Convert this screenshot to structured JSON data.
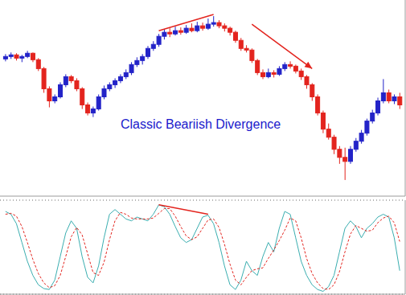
{
  "chart_data": [
    {
      "type": "candlestick",
      "annotation": "Classic Beariish Divergence",
      "x": [
        0,
        1,
        2,
        3,
        4,
        5,
        6,
        7,
        8,
        9,
        10,
        11,
        12,
        13,
        14,
        15,
        16,
        17,
        18,
        19,
        20,
        21,
        22,
        23,
        24,
        25,
        26,
        27,
        28,
        29,
        30,
        31,
        32,
        33,
        34,
        35,
        36,
        37,
        38,
        39,
        40,
        41,
        42,
        43,
        44,
        45,
        46,
        47,
        48,
        49,
        50,
        51,
        52,
        53,
        54,
        55,
        56,
        57,
        58,
        59,
        60,
        61,
        62,
        63,
        64,
        65,
        66,
        67,
        68,
        69,
        70,
        71,
        72
      ],
      "open": [
        170,
        173,
        175,
        171,
        173,
        177,
        169,
        158,
        133,
        118,
        123,
        138,
        148,
        143,
        133,
        113,
        103,
        108,
        123,
        133,
        138,
        143,
        148,
        153,
        163,
        168,
        173,
        183,
        188,
        198,
        203,
        201,
        205,
        203,
        208,
        205,
        211,
        208,
        213,
        215,
        211,
        208,
        203,
        193,
        183,
        181,
        168,
        153,
        148,
        153,
        151,
        158,
        163,
        161,
        155,
        148,
        138,
        123,
        103,
        83,
        73,
        58,
        48,
        43,
        58,
        68,
        78,
        93,
        103,
        118,
        128,
        118,
        123
      ],
      "high": [
        176,
        178,
        177,
        175,
        180,
        178,
        171,
        160,
        136,
        126,
        141,
        151,
        150,
        146,
        135,
        116,
        111,
        126,
        137,
        141,
        146,
        151,
        157,
        166,
        172,
        176,
        186,
        192,
        201,
        207,
        208,
        210,
        209,
        212,
        214,
        216,
        215,
        220,
        223,
        218,
        214,
        210,
        205,
        196,
        187,
        183,
        170,
        157,
        158,
        156,
        161,
        166,
        167,
        163,
        158,
        150,
        140,
        126,
        106,
        90,
        76,
        62,
        60,
        62,
        72,
        82,
        96,
        107,
        122,
        145,
        132,
        126,
        128
      ],
      "low": [
        167,
        170,
        168,
        166,
        171,
        166,
        155,
        128,
        110,
        115,
        121,
        135,
        140,
        130,
        108,
        100,
        98,
        106,
        120,
        130,
        134,
        140,
        145,
        150,
        160,
        163,
        170,
        180,
        185,
        194,
        197,
        199,
        200,
        201,
        203,
        203,
        205,
        206,
        210,
        208,
        204,
        199,
        190,
        180,
        178,
        165,
        150,
        145,
        146,
        147,
        149,
        155,
        158,
        152,
        144,
        133,
        118,
        100,
        78,
        70,
        52,
        40,
        20,
        40,
        55,
        65,
        75,
        90,
        100,
        115,
        115,
        114,
        108
      ],
      "close": [
        173,
        175,
        171,
        173,
        177,
        169,
        158,
        133,
        118,
        123,
        138,
        148,
        143,
        133,
        113,
        103,
        108,
        123,
        133,
        138,
        143,
        148,
        153,
        163,
        168,
        173,
        183,
        188,
        198,
        203,
        201,
        205,
        203,
        208,
        205,
        211,
        208,
        213,
        215,
        211,
        208,
        203,
        193,
        183,
        181,
        168,
        153,
        148,
        153,
        151,
        158,
        163,
        161,
        155,
        148,
        138,
        123,
        103,
        83,
        73,
        58,
        48,
        43,
        58,
        68,
        78,
        93,
        103,
        118,
        128,
        118,
        123,
        113
      ],
      "colors": {
        "up": "#2323c8",
        "down": "#e3241e"
      },
      "xlim": [
        -1,
        73
      ],
      "ylim": [
        0,
        243
      ],
      "grid": false,
      "tick_labels": false,
      "lines": [
        {
          "x": [
            28,
            38
          ],
          "y": [
            205,
            225
          ],
          "color": "#e3241e"
        },
        {
          "x": [
            45,
            56
          ],
          "y": [
            213,
            158
          ],
          "color": "#e3241e",
          "marker": "arrow"
        }
      ]
    },
    {
      "type": "line",
      "x": [
        0,
        1,
        2,
        3,
        4,
        5,
        6,
        7,
        8,
        9,
        10,
        11,
        12,
        13,
        14,
        15,
        16,
        17,
        18,
        19,
        20,
        21,
        22,
        23,
        24,
        25,
        26,
        27,
        28,
        29,
        30,
        31,
        32,
        33,
        34,
        35,
        36,
        37,
        38,
        39,
        40,
        41,
        42,
        43,
        44,
        45,
        46,
        47,
        48,
        49,
        50,
        51,
        52,
        53,
        54,
        55,
        56,
        57,
        58,
        59,
        60,
        61,
        62,
        63,
        64,
        65,
        66,
        67,
        68,
        69,
        70,
        71,
        72
      ],
      "series": [
        {
          "color": "#3aaeb0",
          "line_style": "solid",
          "values": [
            88,
            85,
            75,
            55,
            35,
            20,
            10,
            6,
            5,
            15,
            40,
            65,
            78,
            70,
            40,
            18,
            12,
            30,
            60,
            85,
            90,
            85,
            80,
            78,
            82,
            80,
            78,
            85,
            95,
            93,
            85,
            72,
            60,
            55,
            58,
            70,
            82,
            84,
            75,
            55,
            30,
            10,
            5,
            15,
            35,
            25,
            20,
            40,
            55,
            45,
            70,
            88,
            85,
            60,
            35,
            20,
            10,
            5,
            3,
            8,
            20,
            45,
            70,
            78,
            72,
            60,
            70,
            75,
            82,
            85,
            82,
            60,
            25
          ]
        },
        {
          "color": "#e3241e",
          "line_style": "dashed",
          "values": [
            85,
            86,
            83,
            72,
            55,
            37,
            22,
            12,
            7,
            9,
            20,
            40,
            61,
            71,
            63,
            43,
            23,
            20,
            34,
            58,
            78,
            87,
            85,
            81,
            80,
            80,
            80,
            81,
            86,
            91,
            91,
            83,
            72,
            62,
            58,
            61,
            70,
            79,
            80,
            71,
            53,
            32,
            15,
            10,
            18,
            25,
            27,
            28,
            38,
            47,
            57,
            68,
            81,
            78,
            60,
            38,
            22,
            12,
            6,
            5,
            10,
            24,
            45,
            64,
            73,
            70,
            67,
            68,
            76,
            81,
            83,
            76,
            56
          ]
        }
      ],
      "xlim": [
        -1,
        73
      ],
      "ylim": [
        0,
        100
      ],
      "yticks": [
        20,
        80
      ],
      "grid": true,
      "tick_labels": false,
      "lines": [
        {
          "x": [
            28,
            37
          ],
          "y": [
            95,
            85
          ],
          "color": "#e3241e"
        }
      ]
    }
  ]
}
